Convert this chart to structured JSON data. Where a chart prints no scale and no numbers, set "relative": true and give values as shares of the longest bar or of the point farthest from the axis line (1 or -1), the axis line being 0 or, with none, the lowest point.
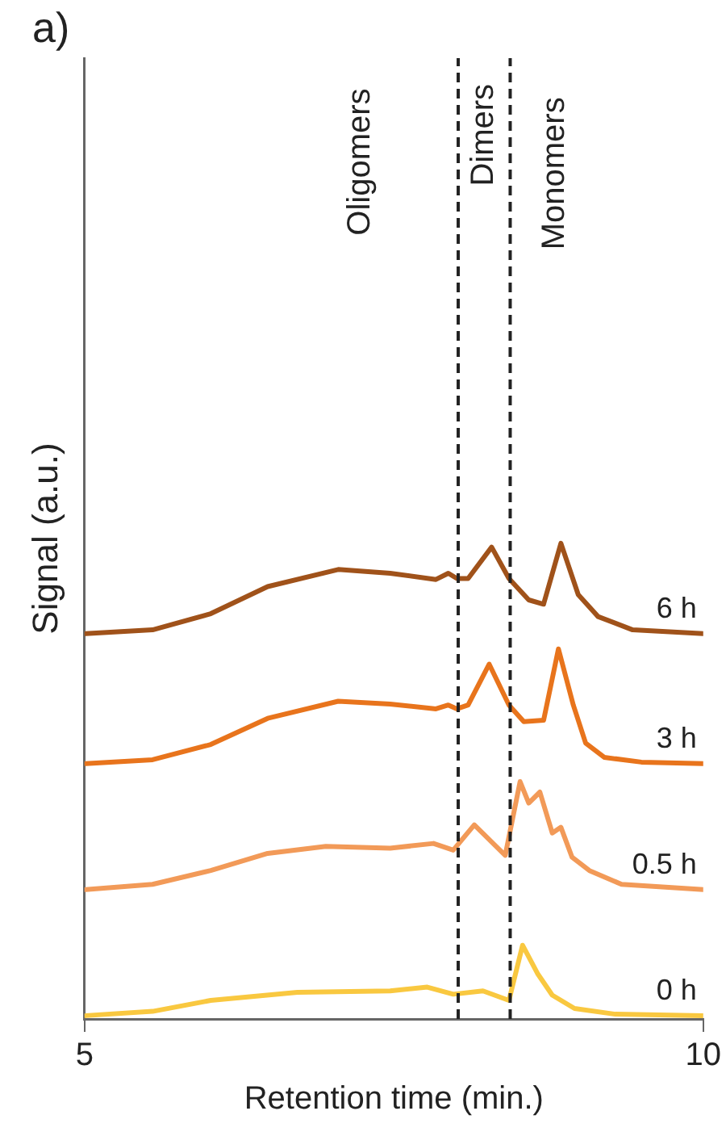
{
  "chart_data": {
    "type": "line",
    "title": "a)",
    "xlabel": "Retention time (min.)",
    "ylabel": "Signal (a.u.)",
    "relative": true,
    "xlim": [
      5,
      10
    ],
    "xticks": [
      5,
      10
    ],
    "grid": false,
    "legend": false,
    "marker": "none",
    "line_style": "solid",
    "series": [
      {
        "name": "6 h",
        "color": "#a0521a",
        "x": [
          5.01,
          5.55,
          6.02,
          6.48,
          7.05,
          7.47,
          7.84,
          7.94,
          8.01,
          8.1,
          8.29,
          8.43,
          8.59,
          8.71,
          8.85,
          8.99,
          9.15,
          9.43,
          10
        ],
        "values": [
          0.81,
          0.818,
          0.852,
          0.909,
          0.945,
          0.937,
          0.924,
          0.937,
          0.926,
          0.926,
          0.992,
          0.926,
          0.881,
          0.872,
          1.0,
          0.892,
          0.846,
          0.818,
          0.81
        ]
      },
      {
        "name": "3 h",
        "color": "#e8741c",
        "x": [
          5.01,
          5.55,
          6.02,
          6.48,
          7.05,
          7.47,
          7.84,
          7.94,
          8.01,
          8.1,
          8.27,
          8.43,
          8.55,
          8.71,
          8.83,
          8.95,
          9.05,
          9.2,
          9.5,
          10
        ],
        "values": [
          0.537,
          0.545,
          0.577,
          0.632,
          0.668,
          0.662,
          0.652,
          0.66,
          0.652,
          0.66,
          0.746,
          0.66,
          0.625,
          0.628,
          0.778,
          0.66,
          0.58,
          0.55,
          0.54,
          0.537
        ]
      },
      {
        "name": "0.5 h",
        "color": "#f29a58",
        "x": [
          5.01,
          5.55,
          6.02,
          6.48,
          6.95,
          7.47,
          7.82,
          7.98,
          8.15,
          8.4,
          8.52,
          8.59,
          8.68,
          8.78,
          8.85,
          8.94,
          9.08,
          9.34,
          10
        ],
        "values": [
          0.272,
          0.283,
          0.312,
          0.348,
          0.363,
          0.359,
          0.369,
          0.355,
          0.408,
          0.344,
          0.499,
          0.454,
          0.477,
          0.391,
          0.403,
          0.34,
          0.312,
          0.283,
          0.272
        ]
      },
      {
        "name": "0 h",
        "color": "#f9c840",
        "x": [
          5.01,
          5.55,
          6.02,
          6.72,
          7.47,
          7.77,
          7.98,
          8.22,
          8.43,
          8.54,
          8.66,
          8.78,
          8.96,
          9.29,
          10
        ],
        "values": [
          0.007,
          0.016,
          0.039,
          0.056,
          0.059,
          0.067,
          0.052,
          0.059,
          0.039,
          0.155,
          0.096,
          0.05,
          0.022,
          0.01,
          0.007
        ]
      }
    ],
    "ref_lines": [
      {
        "axis": "x",
        "value": 8.02,
        "color": "#222222",
        "line_style": "dashed"
      },
      {
        "axis": "x",
        "value": 8.44,
        "color": "#222222",
        "line_style": "dashed"
      }
    ],
    "annotations": [
      "Oligomers",
      "Dimers",
      "Monomers"
    ]
  }
}
